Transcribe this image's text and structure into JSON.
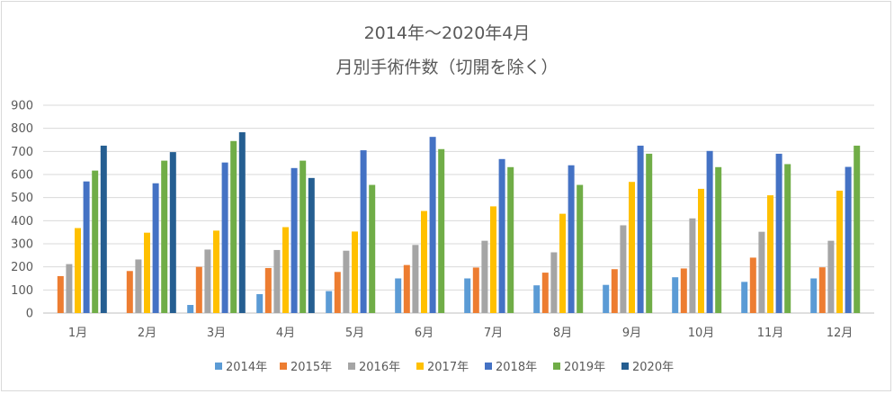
{
  "chart_data": {
    "type": "bar",
    "title": [
      "2014年～2020年4月",
      "月別手術件数（切開を除く）"
    ],
    "xlabel": "",
    "ylabel": "",
    "ylim": [
      0,
      900
    ],
    "yticks": [
      0,
      100,
      200,
      300,
      400,
      500,
      600,
      700,
      800,
      900
    ],
    "grid": true,
    "legend": "bottom",
    "categories": [
      "1月",
      "2月",
      "3月",
      "4月",
      "5月",
      "6月",
      "7月",
      "8月",
      "9月",
      "10月",
      "11月",
      "12月"
    ],
    "series": [
      {
        "name": "2014年",
        "color": "#5b9bd5",
        "values": [
          null,
          null,
          35,
          82,
          95,
          150,
          150,
          120,
          122,
          155,
          135,
          150
        ]
      },
      {
        "name": "2015年",
        "color": "#ed7d31",
        "values": [
          160,
          182,
          200,
          195,
          178,
          208,
          197,
          175,
          190,
          193,
          240,
          198
        ]
      },
      {
        "name": "2016年",
        "color": "#a5a5a5",
        "values": [
          212,
          232,
          275,
          273,
          270,
          295,
          313,
          263,
          380,
          410,
          352,
          313
        ]
      },
      {
        "name": "2017年",
        "color": "#ffc000",
        "values": [
          368,
          348,
          357,
          372,
          353,
          442,
          462,
          430,
          568,
          538,
          510,
          530
        ]
      },
      {
        "name": "2018年",
        "color": "#4472c4",
        "values": [
          570,
          562,
          652,
          628,
          705,
          763,
          667,
          640,
          725,
          702,
          690,
          633
        ]
      },
      {
        "name": "2019年",
        "color": "#70ad47",
        "values": [
          617,
          660,
          745,
          660,
          555,
          710,
          632,
          555,
          690,
          632,
          645,
          725
        ]
      },
      {
        "name": "2020年",
        "color": "#255e91",
        "values": [
          725,
          697,
          783,
          585,
          null,
          null,
          null,
          null,
          null,
          null,
          null,
          null
        ]
      }
    ]
  }
}
